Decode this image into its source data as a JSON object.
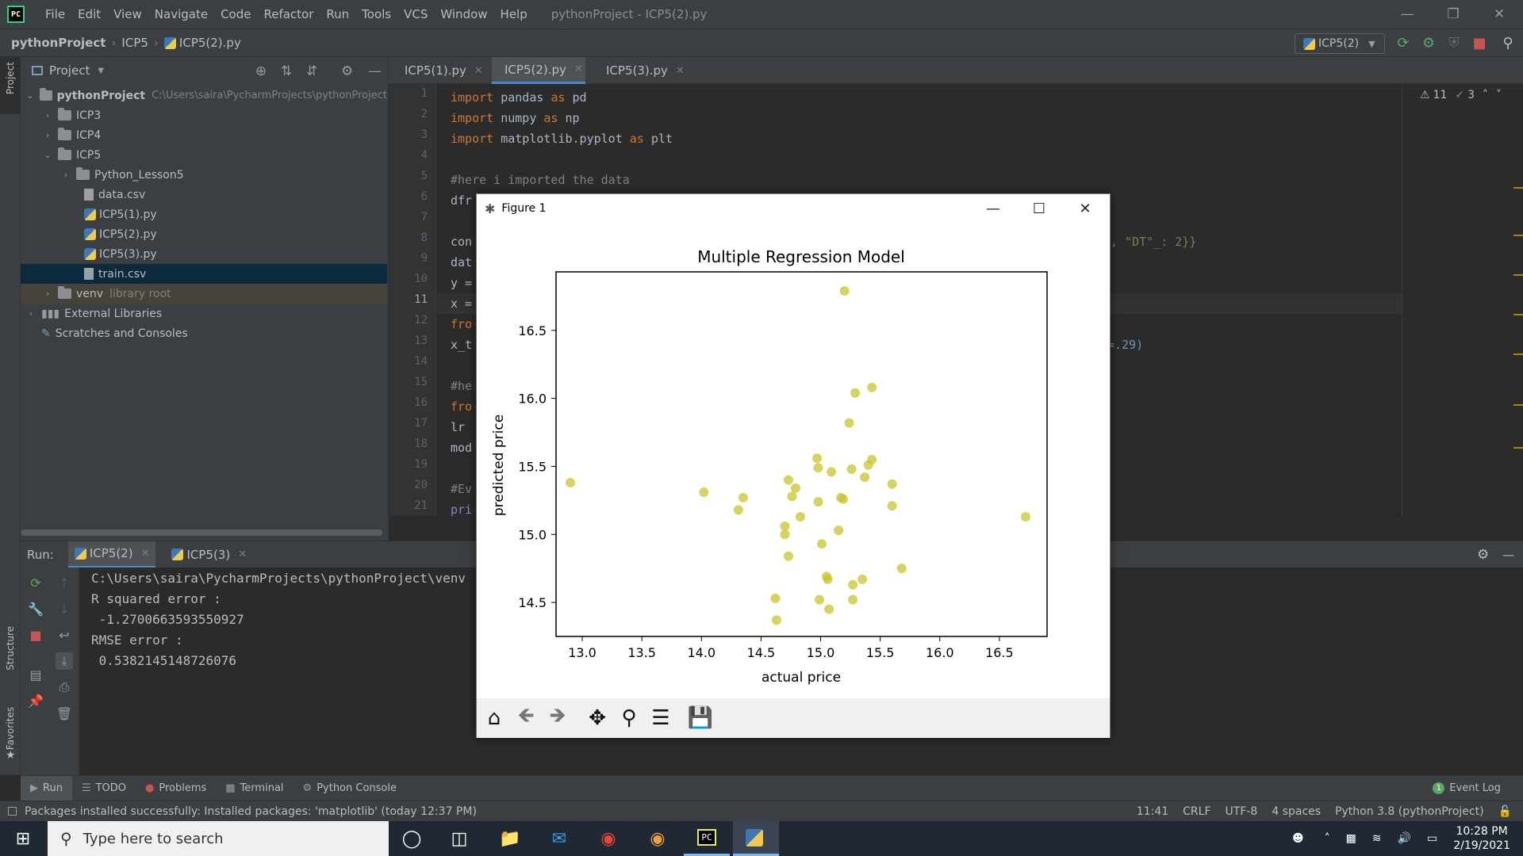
{
  "menubar": {
    "logo": "PC",
    "items": [
      "File",
      "Edit",
      "View",
      "Navigate",
      "Code",
      "Refactor",
      "Run",
      "Tools",
      "VCS",
      "Window",
      "Help"
    ],
    "window_title": "pythonProject - ICP5(2).py"
  },
  "navbar": {
    "breadcrumbs": [
      "pythonProject",
      "ICP5",
      "ICP5(2).py"
    ],
    "run_config": "ICP5(2)"
  },
  "left_strip": {
    "project": "Project",
    "structure": "Structure",
    "favorites": "Favorites"
  },
  "project_panel": {
    "header": "Project",
    "tree": [
      {
        "label": "pythonProject",
        "extra": "C:\\Users\\saira\\PycharmProjects\\pythonProject",
        "type": "folder",
        "depth": 0,
        "expanded": true
      },
      {
        "label": "ICP3",
        "type": "folder",
        "depth": 1,
        "expanded": false
      },
      {
        "label": "ICP4",
        "type": "folder",
        "depth": 1,
        "expanded": false
      },
      {
        "label": "ICP5",
        "type": "folder",
        "depth": 1,
        "expanded": true
      },
      {
        "label": "Python_Lesson5",
        "type": "folder",
        "depth": 2,
        "expanded": false
      },
      {
        "label": "data.csv",
        "type": "file",
        "depth": 2
      },
      {
        "label": "ICP5(1).py",
        "type": "py",
        "depth": 2
      },
      {
        "label": "ICP5(2).py",
        "type": "py",
        "depth": 2
      },
      {
        "label": "ICP5(3).py",
        "type": "py",
        "depth": 2
      },
      {
        "label": "train.csv",
        "type": "file",
        "depth": 2,
        "selected": true
      },
      {
        "label": "venv",
        "extra": "library root",
        "type": "folder",
        "depth": 1,
        "expanded": false
      },
      {
        "label": "External Libraries",
        "type": "lib",
        "depth": 0,
        "expanded": false
      },
      {
        "label": "Scratches and Consoles",
        "type": "scratch",
        "depth": 0
      }
    ]
  },
  "editor": {
    "tabs": [
      {
        "label": "ICP5(1).py",
        "active": false
      },
      {
        "label": "ICP5(2).py",
        "active": true
      },
      {
        "label": "ICP5(3).py",
        "active": false
      }
    ],
    "inspection": {
      "warnings": "11",
      "ok": "3"
    },
    "line_numbers": [
      "1",
      "2",
      "3",
      "4",
      "5",
      "6",
      "7",
      "8",
      "9",
      "10",
      "11",
      "12",
      "13",
      "14",
      "15",
      "16",
      "17",
      "18",
      "19",
      "20",
      "21"
    ],
    "lines": [
      "import pandas as pd",
      "import numpy as np",
      "import matplotlib.pyplot as plt",
      "",
      "#here i imported the data",
      "dfr",
      "",
      "con",
      "dat",
      "y =",
      "x =",
      "fro",
      "x_t",
      "",
      "#he",
      "fro",
      "lr",
      "mod",
      "",
      "#Ev",
      "pri"
    ],
    "line8_tail": ", \"DT\"_: 2}}",
    "line13_tail": "=.29)"
  },
  "run_panel": {
    "label": "Run:",
    "tabs": [
      "ICP5(2)",
      "ICP5(3)"
    ],
    "console_lines": [
      "C:\\Users\\saira\\PycharmProjects\\pythonProject\\venv",
      "R squared error :",
      " -1.2700663593550927",
      "RMSE error :",
      " 0.5382145148726076"
    ]
  },
  "bottom_tabs": [
    "Run",
    "TODO",
    "Problems",
    "Terminal",
    "Python Console"
  ],
  "event_log": {
    "count": "1",
    "label": "Event Log"
  },
  "statusbar": {
    "message": "Packages installed successfully: Installed packages: 'matplotlib' (today 12:37 PM)",
    "position": "11:41",
    "line_sep": "CRLF",
    "encoding": "UTF-8",
    "indent": "4 spaces",
    "interpreter": "Python 3.8 (pythonProject)"
  },
  "taskbar": {
    "search_placeholder": "Type here to search",
    "time": "10:28 PM",
    "date": "2/19/2021"
  },
  "figure": {
    "window_title": "Figure 1",
    "toolbar": [
      "home-icon",
      "back-icon",
      "forward-icon",
      "pan-icon",
      "zoom-icon",
      "configure-icon",
      "save-icon"
    ]
  },
  "chart_data": {
    "type": "scatter",
    "title": "Multiple Regression Model",
    "xlabel": "actual price",
    "ylabel": "predicted price",
    "xlim": [
      12.78,
      16.9
    ],
    "ylim": [
      14.25,
      16.93
    ],
    "xticks": [
      13.0,
      13.5,
      14.0,
      14.5,
      15.0,
      15.5,
      16.0,
      16.5
    ],
    "yticks": [
      14.5,
      15.0,
      15.5,
      16.0,
      16.5
    ],
    "xtick_labels": [
      "13.0",
      "13.5",
      "14.0",
      "14.5",
      "15.0",
      "15.5",
      "16.0",
      "16.5"
    ],
    "ytick_labels": [
      "14.5",
      "15.0",
      "15.5",
      "16.0",
      "16.5"
    ],
    "marker_color": "#c9c42a",
    "points": [
      [
        12.9,
        15.38
      ],
      [
        14.02,
        15.31
      ],
      [
        14.31,
        15.18
      ],
      [
        14.35,
        15.27
      ],
      [
        14.62,
        14.53
      ],
      [
        14.63,
        14.37
      ],
      [
        14.7,
        15.06
      ],
      [
        14.7,
        15.0
      ],
      [
        14.73,
        15.4
      ],
      [
        14.73,
        14.84
      ],
      [
        14.76,
        15.28
      ],
      [
        14.79,
        15.34
      ],
      [
        14.83,
        15.13
      ],
      [
        14.97,
        15.56
      ],
      [
        14.98,
        15.24
      ],
      [
        14.99,
        14.52
      ],
      [
        14.98,
        15.49
      ],
      [
        15.01,
        14.93
      ],
      [
        15.05,
        14.69
      ],
      [
        15.06,
        14.67
      ],
      [
        15.07,
        14.45
      ],
      [
        15.09,
        15.46
      ],
      [
        15.15,
        15.03
      ],
      [
        15.17,
        15.27
      ],
      [
        15.19,
        15.26
      ],
      [
        15.2,
        16.79
      ],
      [
        15.24,
        15.82
      ],
      [
        15.26,
        15.48
      ],
      [
        15.27,
        14.63
      ],
      [
        15.27,
        14.52
      ],
      [
        15.29,
        16.04
      ],
      [
        15.35,
        14.67
      ],
      [
        15.37,
        15.42
      ],
      [
        15.4,
        15.51
      ],
      [
        15.43,
        16.08
      ],
      [
        15.43,
        15.55
      ],
      [
        15.6,
        15.37
      ],
      [
        15.6,
        15.21
      ],
      [
        15.68,
        14.75
      ],
      [
        16.72,
        15.13
      ]
    ]
  }
}
